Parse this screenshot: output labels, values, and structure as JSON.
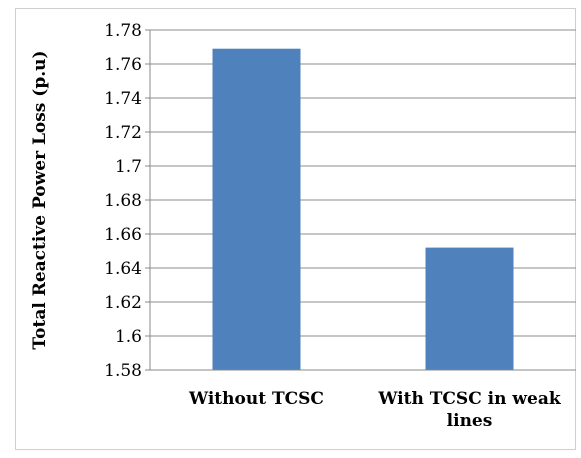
{
  "chart_data": {
    "type": "bar",
    "categories": [
      [
        "Without TCSC"
      ],
      [
        "With TCSC in weak",
        "lines"
      ]
    ],
    "values": [
      1.769,
      1.652
    ],
    "ylabel": "Total Reactive Power Loss (p.u)",
    "ylim": [
      1.58,
      1.78
    ],
    "yticks": [
      "1.58",
      "1.6",
      "1.62",
      "1.64",
      "1.66",
      "1.68",
      "1.7",
      "1.72",
      "1.74",
      "1.76",
      "1.78"
    ],
    "grid": true,
    "bar_color": "#4f81bd"
  }
}
